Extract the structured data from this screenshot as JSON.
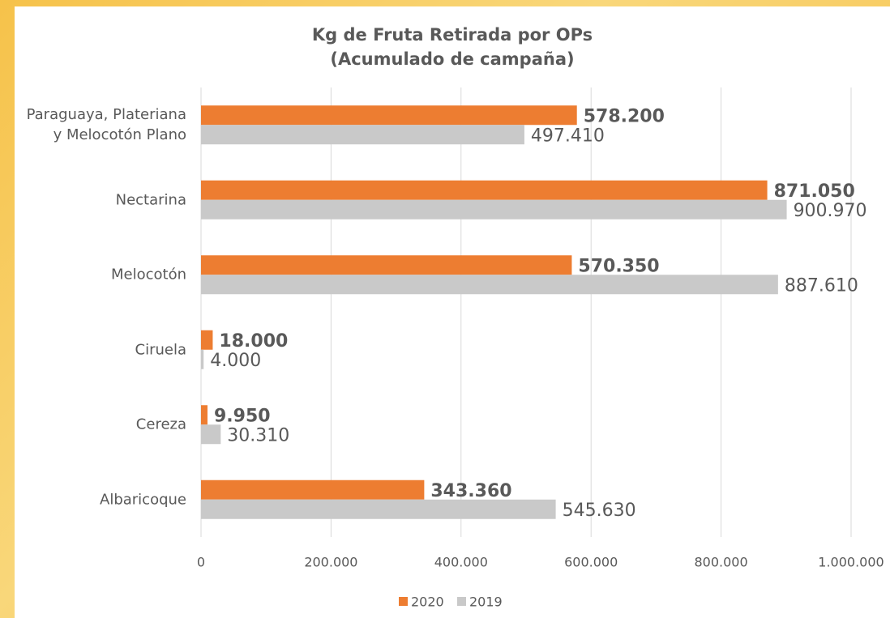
{
  "chart_data": {
    "type": "bar",
    "orientation": "horizontal",
    "title": "Kg de Fruta Retirada por OPs",
    "subtitle": "(Acumulado de campaña)",
    "categories": [
      "Paraguaya, Plateriana y Melocotón Plano",
      "Nectarina",
      "Melocotón",
      "Ciruela",
      "Cereza",
      "Albaricoque"
    ],
    "series": [
      {
        "name": "2020",
        "color": "#ed7d31",
        "values": [
          578200,
          871050,
          570350,
          18000,
          9950,
          343360
        ],
        "value_labels": [
          "578.200",
          "871.050",
          "570.350",
          "18.000",
          "9.950",
          "343.360"
        ]
      },
      {
        "name": "2019",
        "color": "#c9c9c9",
        "values": [
          497410,
          900970,
          887610,
          4000,
          30310,
          545630
        ],
        "value_labels": [
          "497.410",
          "900.970",
          "887.610",
          "4.000",
          "30.310",
          "545.630"
        ]
      }
    ],
    "xlim": [
      0,
      1000000
    ],
    "xticks": [
      0,
      {
        "value": 200000,
        "label": "200.000"
      },
      {
        "value": 400000,
        "label": "400.000"
      },
      {
        "value": 600000,
        "label": "600.000"
      },
      {
        "value": 800000,
        "label": "800.000"
      },
      {
        "value": 1000000,
        "label": "1.000.000"
      }
    ],
    "grid": true,
    "legend": "bottom"
  }
}
